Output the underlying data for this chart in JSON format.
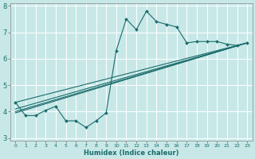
{
  "xlabel": "Humidex (Indice chaleur)",
  "bg_color": "#c8e8e8",
  "line_color": "#1a6b6b",
  "grid_color": "#ffffff",
  "xlim": [
    -0.5,
    23.5
  ],
  "ylim": [
    2.9,
    8.1
  ],
  "yticks": [
    3,
    4,
    5,
    6,
    7,
    8
  ],
  "xticks": [
    0,
    1,
    2,
    3,
    4,
    5,
    6,
    7,
    8,
    9,
    10,
    11,
    12,
    13,
    14,
    15,
    16,
    17,
    18,
    19,
    20,
    21,
    22,
    23
  ],
  "main_series": {
    "x": [
      0,
      1,
      2,
      3,
      4,
      5,
      6,
      7,
      8,
      9,
      10,
      11,
      12,
      13,
      14,
      15,
      16,
      17,
      18,
      19,
      20,
      21,
      22,
      23
    ],
    "y": [
      4.35,
      3.85,
      3.85,
      4.05,
      4.2,
      3.65,
      3.65,
      3.4,
      3.65,
      3.95,
      6.3,
      7.5,
      7.1,
      7.8,
      7.4,
      7.3,
      7.2,
      6.6,
      6.65,
      6.65,
      6.65,
      6.55,
      6.5,
      6.6
    ]
  },
  "trend_lines": [
    {
      "x": [
        0,
        23
      ],
      "y": [
        4.1,
        6.6
      ]
    },
    {
      "x": [
        0,
        23
      ],
      "y": [
        4.0,
        6.6
      ]
    },
    {
      "x": [
        0,
        23
      ],
      "y": [
        3.95,
        6.6
      ]
    },
    {
      "x": [
        0,
        23
      ],
      "y": [
        4.35,
        6.6
      ]
    }
  ]
}
